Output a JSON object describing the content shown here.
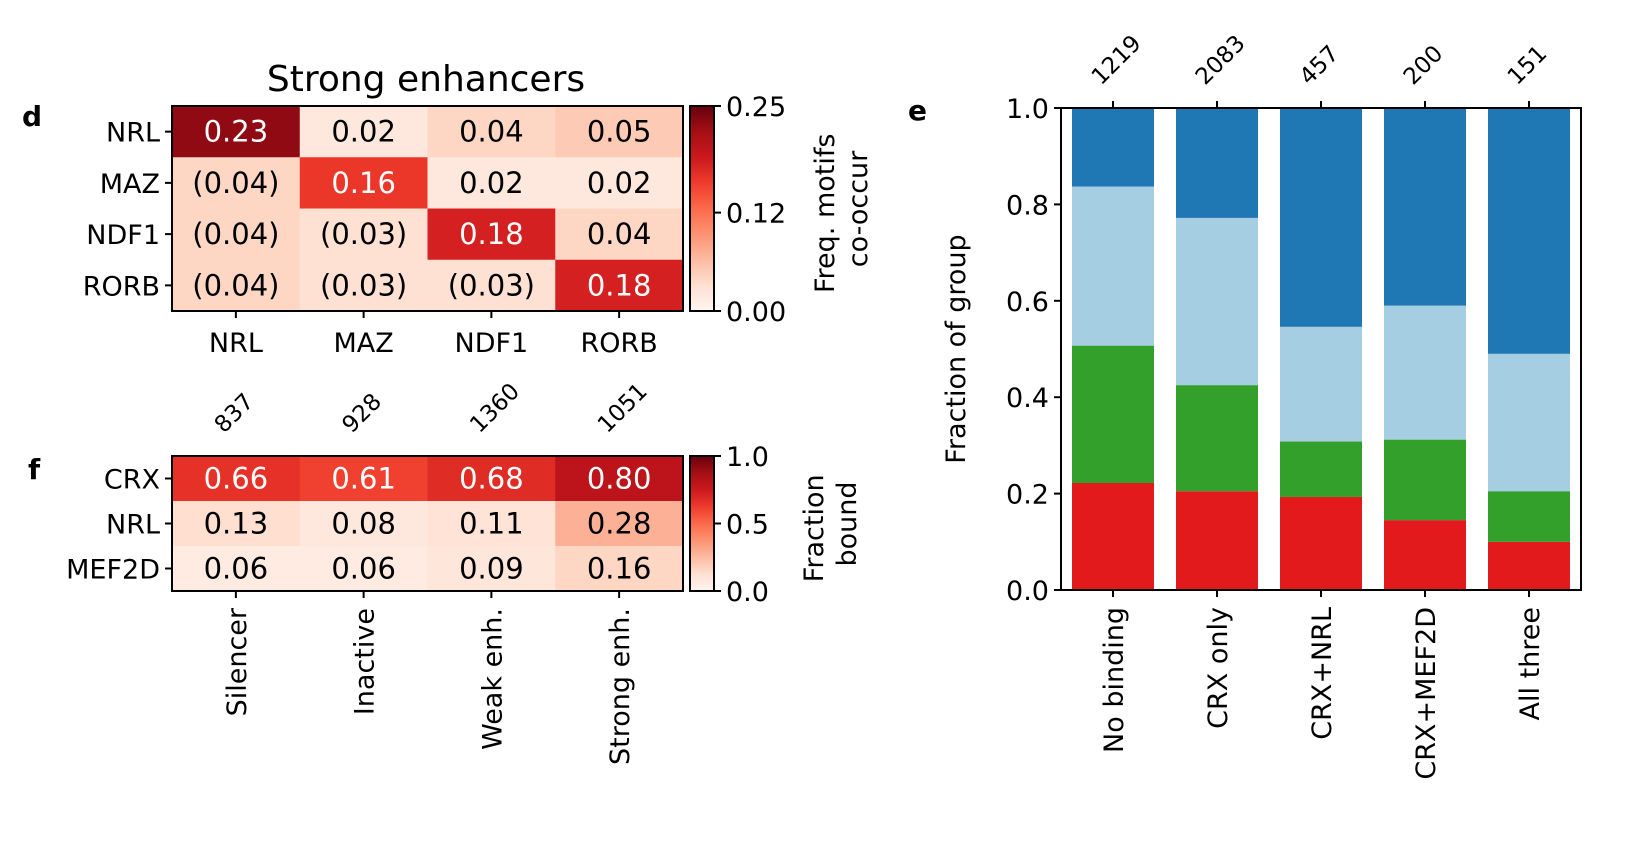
{
  "panel_labels": {
    "d": "d",
    "e": "e",
    "f": "f"
  },
  "chart_data": [
    {
      "panel": "d",
      "type": "heatmap",
      "title": "Strong enhancers",
      "rows": [
        "NRL",
        "MAZ",
        "NDF1",
        "RORB"
      ],
      "cols": [
        "NRL",
        "MAZ",
        "NDF1",
        "RORB"
      ],
      "values": [
        [
          0.23,
          0.02,
          0.04,
          0.05
        ],
        [
          0.04,
          0.16,
          0.02,
          0.02
        ],
        [
          0.04,
          0.03,
          0.18,
          0.04
        ],
        [
          0.04,
          0.03,
          0.03,
          0.18
        ]
      ],
      "labels": [
        [
          "0.23",
          "0.02",
          "0.04",
          "0.05"
        ],
        [
          "(0.04)",
          "0.16",
          "0.02",
          "0.02"
        ],
        [
          "(0.04)",
          "(0.03)",
          "0.18",
          "0.04"
        ],
        [
          "(0.04)",
          "(0.03)",
          "(0.03)",
          "0.18"
        ]
      ],
      "colorbar": {
        "label_lines": [
          "Freq. motifs",
          "co-occur"
        ],
        "range": [
          0,
          0.25
        ],
        "ticks": [
          0,
          0.12,
          0.25
        ],
        "tick_labels": [
          "0.00",
          "0.12",
          "0.25"
        ]
      },
      "colormap": "Reds"
    },
    {
      "panel": "f",
      "type": "heatmap",
      "rows": [
        "CRX",
        "NRL",
        "MEF2D"
      ],
      "cols": [
        "Silencer",
        "Inactive",
        "Weak enh.",
        "Strong enh."
      ],
      "col_counts": [
        "837",
        "928",
        "1360",
        "1051"
      ],
      "values": [
        [
          0.66,
          0.61,
          0.68,
          0.8
        ],
        [
          0.13,
          0.08,
          0.11,
          0.28
        ],
        [
          0.06,
          0.06,
          0.09,
          0.16
        ]
      ],
      "labels": [
        [
          "0.66",
          "0.61",
          "0.68",
          "0.80"
        ],
        [
          "0.13",
          "0.08",
          "0.11",
          "0.28"
        ],
        [
          "0.06",
          "0.06",
          "0.09",
          "0.16"
        ]
      ],
      "colorbar": {
        "label_lines": [
          "Fraction",
          "bound"
        ],
        "range": [
          0,
          1
        ],
        "ticks": [
          0,
          0.5,
          1
        ],
        "tick_labels": [
          "0.0",
          "0.5",
          "1.0"
        ]
      },
      "colormap": "Reds"
    },
    {
      "panel": "e",
      "type": "bar",
      "stacked": true,
      "ylabel": "Fraction of group",
      "ylim": [
        0,
        1
      ],
      "yticks": [
        0,
        0.2,
        0.4,
        0.6,
        0.8,
        1.0
      ],
      "ytick_labels": [
        "0.0",
        "0.2",
        "0.4",
        "0.6",
        "0.8",
        "1.0"
      ],
      "categories": [
        "No binding",
        "CRX only",
        "CRX+NRL",
        "CRX+MEF2D",
        "All three"
      ],
      "counts": [
        "1219",
        "2083",
        "457",
        "200",
        "151"
      ],
      "series": [
        {
          "color": "#e31a1c",
          "values": [
            0.222,
            0.205,
            0.193,
            0.145,
            0.1
          ]
        },
        {
          "color": "#33a02c",
          "values": [
            0.285,
            0.22,
            0.115,
            0.167,
            0.105
          ]
        },
        {
          "color": "#a6cee3",
          "values": [
            0.33,
            0.347,
            0.238,
            0.278,
            0.285
          ]
        },
        {
          "color": "#1f78b4",
          "values": [
            0.163,
            0.228,
            0.454,
            0.41,
            0.51
          ]
        }
      ]
    }
  ]
}
